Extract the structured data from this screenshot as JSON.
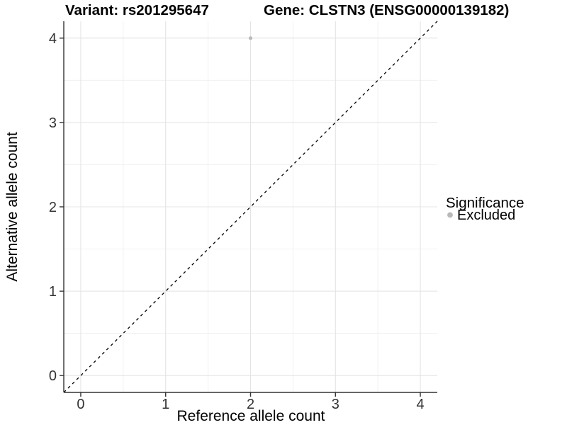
{
  "chart_data": {
    "type": "scatter",
    "title_left": "Variant: rs201295647",
    "title_right": "Gene: CLSTN3 (ENSG00000139182)",
    "xlabel": "Reference allele count",
    "ylabel": "Alternative allele count",
    "xlim": [
      -0.2,
      4.2
    ],
    "ylim": [
      -0.2,
      4.2
    ],
    "xticks": [
      "0",
      "1",
      "2",
      "3",
      "4"
    ],
    "yticks": [
      "0",
      "1",
      "2",
      "3",
      "4"
    ],
    "xtick_values": [
      0,
      1,
      2,
      3,
      4
    ],
    "ytick_values": [
      0,
      1,
      2,
      3,
      4
    ],
    "x_minor": [
      0.5,
      1.5,
      2.5,
      3.5
    ],
    "y_minor": [
      0.5,
      1.5,
      2.5,
      3.5
    ],
    "grid": true,
    "series": [
      {
        "name": "Excluded",
        "color": "#b9b9b9",
        "points": [
          {
            "x": 2,
            "y": 4
          }
        ]
      }
    ],
    "reference_line": {
      "kind": "y=x",
      "style": "dashed",
      "color": "#000000"
    },
    "legend": {
      "position": "right",
      "title": "Significance",
      "entries": [
        {
          "label": "Excluded",
          "color": "#b9b9b9"
        }
      ]
    },
    "colors": {
      "background": "#ffffff",
      "grid_major": "#e4e4e4",
      "grid_minor": "#f0f0f0",
      "axis_line": "#333333",
      "tick_text": "#333333",
      "title_text": "#000000"
    }
  }
}
